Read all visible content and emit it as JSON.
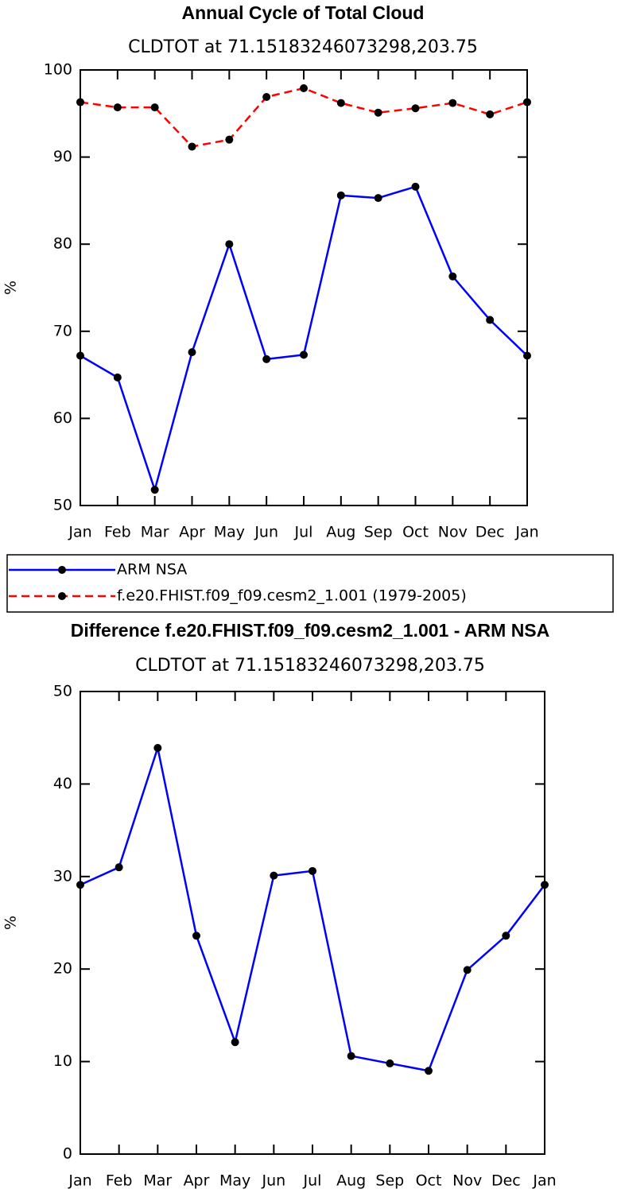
{
  "chart_data": [
    {
      "type": "line",
      "title": "Annual Cycle of Total Cloud",
      "subtitle": "CLDTOT at 71.15183246073298,203.75",
      "ylabel": "%",
      "categories": [
        "Jan",
        "Feb",
        "Mar",
        "Apr",
        "May",
        "Jun",
        "Jul",
        "Aug",
        "Sep",
        "Oct",
        "Nov",
        "Dec",
        "Jan"
      ],
      "series": [
        {
          "name": "ARM NSA",
          "color": "#0000ff",
          "dash": "solid",
          "values": [
            67.2,
            64.7,
            51.8,
            67.6,
            80.0,
            66.8,
            67.3,
            85.6,
            85.3,
            86.6,
            76.3,
            71.3,
            67.2
          ]
        },
        {
          "name": "f.e20.FHIST.f09_f09.cesm2_1.001 (1979-2005)",
          "color": "#ff0000",
          "dash": "dashed",
          "values": [
            96.3,
            95.7,
            95.7,
            91.2,
            92.0,
            96.9,
            97.9,
            96.2,
            95.1,
            95.6,
            96.2,
            94.9,
            96.3
          ]
        }
      ],
      "ylim": [
        50,
        100
      ],
      "yticks": [
        50,
        60,
        70,
        80,
        90,
        100
      ],
      "legend": "below"
    },
    {
      "type": "line",
      "title": "Difference f.e20.FHIST.f09_f09.cesm2_1.001 - ARM NSA",
      "subtitle": "CLDTOT at 71.15183246073298,203.75",
      "ylabel": "%",
      "categories": [
        "Jan",
        "Feb",
        "Mar",
        "Apr",
        "May",
        "Jun",
        "Jul",
        "Aug",
        "Sep",
        "Oct",
        "Nov",
        "Dec",
        "Jan"
      ],
      "series": [
        {
          "color": "#0000ff",
          "dash": "solid",
          "values": [
            29.1,
            31.0,
            43.9,
            23.6,
            12.1,
            30.1,
            30.6,
            10.6,
            9.8,
            9.0,
            19.9,
            23.6,
            29.1
          ]
        }
      ],
      "ylim": [
        0,
        50
      ],
      "yticks": [
        0,
        10,
        20,
        30,
        40,
        50
      ]
    }
  ]
}
